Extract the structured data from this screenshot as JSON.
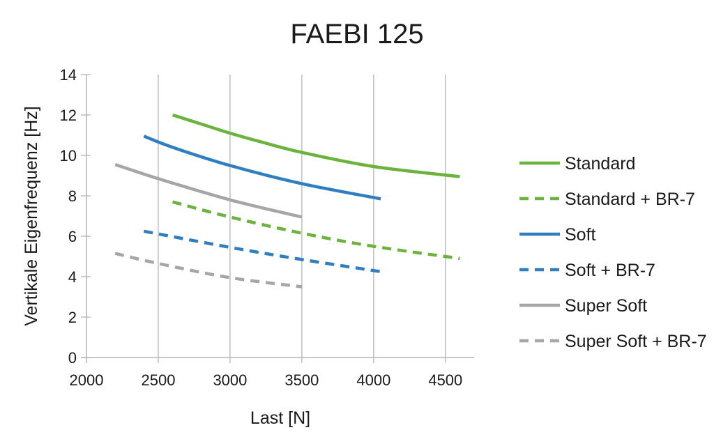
{
  "chart_data": {
    "type": "line",
    "title": "FAEBI 125",
    "xlabel": "Last [N]",
    "ylabel": "Vertikale Eigenfrequenz [Hz]",
    "xlim": [
      2000,
      4700
    ],
    "ylim": [
      0,
      14
    ],
    "x_ticks": [
      2000,
      2500,
      3000,
      3500,
      4000,
      4500
    ],
    "y_ticks": [
      0,
      2,
      4,
      6,
      8,
      10,
      12,
      14
    ],
    "grid": "vertical",
    "legend_position": "right",
    "series": [
      {
        "name": "Standard",
        "color": "#6ab43e",
        "dashed": false,
        "points": [
          [
            2600,
            12.0
          ],
          [
            2800,
            11.55
          ],
          [
            3000,
            11.1
          ],
          [
            3200,
            10.7
          ],
          [
            3500,
            10.15
          ],
          [
            4000,
            9.45
          ],
          [
            4600,
            8.95
          ]
        ]
      },
      {
        "name": "Standard + BR-7",
        "color": "#6ab43e",
        "dashed": true,
        "points": [
          [
            2600,
            7.7
          ],
          [
            3000,
            6.95
          ],
          [
            3500,
            6.15
          ],
          [
            4000,
            5.5
          ],
          [
            4600,
            4.9
          ]
        ]
      },
      {
        "name": "Soft",
        "color": "#2f7fc0",
        "dashed": false,
        "points": [
          [
            2400,
            10.95
          ],
          [
            2600,
            10.4
          ],
          [
            3000,
            9.5
          ],
          [
            3500,
            8.6
          ],
          [
            4050,
            7.85
          ]
        ]
      },
      {
        "name": "Soft + BR-7",
        "color": "#2f7fc0",
        "dashed": true,
        "points": [
          [
            2400,
            6.25
          ],
          [
            3000,
            5.45
          ],
          [
            3500,
            4.85
          ],
          [
            4050,
            4.25
          ]
        ]
      },
      {
        "name": "Super Soft",
        "color": "#a6a6a6",
        "dashed": false,
        "points": [
          [
            2200,
            9.55
          ],
          [
            2500,
            8.85
          ],
          [
            3000,
            7.8
          ],
          [
            3500,
            6.95
          ]
        ]
      },
      {
        "name": "Super Soft + BR-7",
        "color": "#a6a6a6",
        "dashed": true,
        "points": [
          [
            2200,
            5.15
          ],
          [
            2500,
            4.65
          ],
          [
            3000,
            3.95
          ],
          [
            3500,
            3.5
          ]
        ]
      }
    ]
  }
}
